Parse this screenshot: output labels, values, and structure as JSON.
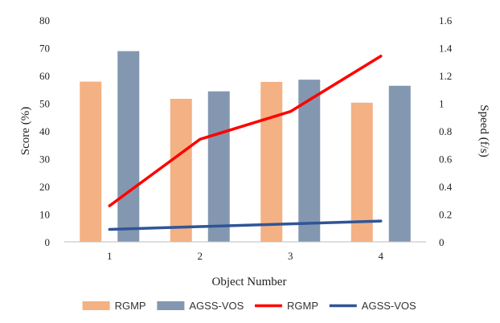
{
  "chart_data": {
    "type": "bar",
    "categories": [
      "1",
      "2",
      "3",
      "4"
    ],
    "xlabel": "Object Number",
    "ylabel": "Score (%)",
    "y2label": "Speed (f/s)",
    "ylim": [
      0,
      80
    ],
    "yticks": [
      "0",
      "10",
      "20",
      "30",
      "40",
      "50",
      "60",
      "70",
      "80"
    ],
    "y2lim": [
      0,
      1.6
    ],
    "y2ticks": [
      "0",
      "0.2",
      "0.4",
      "0.6",
      "0.8",
      "1",
      "1.2",
      "1.4",
      "1.6"
    ],
    "grid": false,
    "legend_position": "bottom",
    "bar_series": [
      {
        "name": "RGMP",
        "values": [
          57.8,
          51.6,
          57.7,
          50.2
        ],
        "color": "#F4B183"
      },
      {
        "name": "AGSS-VOS",
        "values": [
          68.8,
          54.3,
          58.5,
          56.3
        ],
        "color": "#8497B0"
      }
    ],
    "line_series": [
      {
        "name": "RGMP",
        "axis": "right",
        "values": [
          0.26,
          0.74,
          0.94,
          1.34
        ],
        "color": "#FF0000"
      },
      {
        "name": "AGSS-VOS",
        "axis": "right",
        "values": [
          0.09,
          0.11,
          0.13,
          0.15
        ],
        "color": "#2F5597"
      }
    ]
  }
}
